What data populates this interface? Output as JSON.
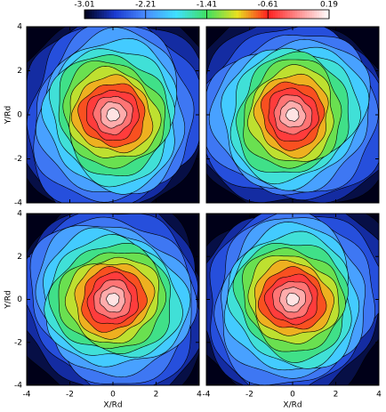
{
  "chart_data": {
    "type": "contour",
    "colorbar": {
      "lim": [
        -3.01,
        0.19
      ],
      "ticks": [
        -3.01,
        -2.21,
        -1.41,
        -0.61,
        0.19
      ],
      "colors": [
        "#000018",
        "#1a3ad0",
        "#4a8cff",
        "#40e0ff",
        "#40e060",
        "#e8e020",
        "#ff2020",
        "#ff9090",
        "#ffffff"
      ]
    },
    "panels": [
      {
        "xlim": [
          -4,
          4
        ],
        "ylim": [
          -4,
          4
        ],
        "yticks": [
          -4,
          -2,
          0,
          2,
          4
        ],
        "ylabel": "Y/Rd"
      },
      {
        "xlim": [
          -4,
          4
        ],
        "ylim": [
          -4,
          4
        ]
      },
      {
        "xlim": [
          -4,
          4
        ],
        "ylim": [
          -4,
          4
        ],
        "xticks": [
          -4,
          -2,
          0,
          2,
          4
        ],
        "yticks": [
          -4,
          -2,
          0,
          2,
          4
        ],
        "xlabel": "X/Rd",
        "ylabel": "Y/Rd"
      },
      {
        "xlim": [
          -4,
          4
        ],
        "ylim": [
          -4,
          4
        ],
        "xticks": [
          -4,
          -2,
          0,
          2,
          4
        ],
        "xlabel": "X/Rd"
      }
    ]
  }
}
